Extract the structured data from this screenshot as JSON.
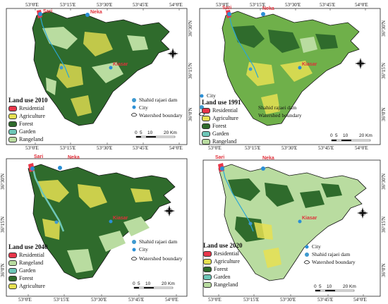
{
  "coord_labels": {
    "lon": [
      "53°0'E",
      "53°15'E",
      "53°30'E",
      "53°45'E",
      "54°0'E"
    ],
    "lat": [
      "36°30'N",
      "36°15'N",
      "36°0'N"
    ]
  },
  "cities": {
    "sari": "Sari",
    "neka": "Neka",
    "kiasar": "Kiasar"
  },
  "scale": {
    "ticks": [
      "0",
      "5",
      "10",
      "20 Km"
    ]
  },
  "colors": {
    "Residential": "#e8364a",
    "Agriculture": "#e6e052",
    "Forest": "#2f6b2c",
    "Garden": "#6ec7b8",
    "Rangeland": "#b9dca0",
    "frame": "#222222",
    "river": "#29a6d6"
  },
  "panels": [
    {
      "id": "2010",
      "title": "Land use 2010",
      "legend": [
        "Residential",
        "Agriculture",
        "Forest",
        "Garden",
        "Rangeland"
      ],
      "symbols": {
        "dam": "Shahid rajaei dam",
        "city": "City",
        "boundary": "Watershed boundary"
      }
    },
    {
      "id": "1991",
      "title": "Land use 1991",
      "legend": [
        "Residential",
        "Agriculture",
        "Forest",
        "Garden",
        "Rangeland"
      ],
      "symbols": {
        "dam": "Shahid rajaei dam",
        "city": "City",
        "boundary": "Watershed boundary"
      }
    },
    {
      "id": "2040",
      "title": "Land use 2040",
      "legend": [
        "Residential",
        "Rangeland",
        "Garden",
        "Forest",
        "Agriculture"
      ],
      "symbols": {
        "dam": "Shahid rajaei dam",
        "city": "City",
        "boundary": "Watershed boundary"
      }
    },
    {
      "id": "2020",
      "title": "Land use 2020",
      "legend": [
        "Residential",
        "Agriculture",
        "Forest",
        "Garden",
        "Rangeland"
      ],
      "symbols": {
        "dam": "Shahid rajaei dam",
        "city": "City",
        "boundary": "Watershed boundary"
      }
    }
  ]
}
